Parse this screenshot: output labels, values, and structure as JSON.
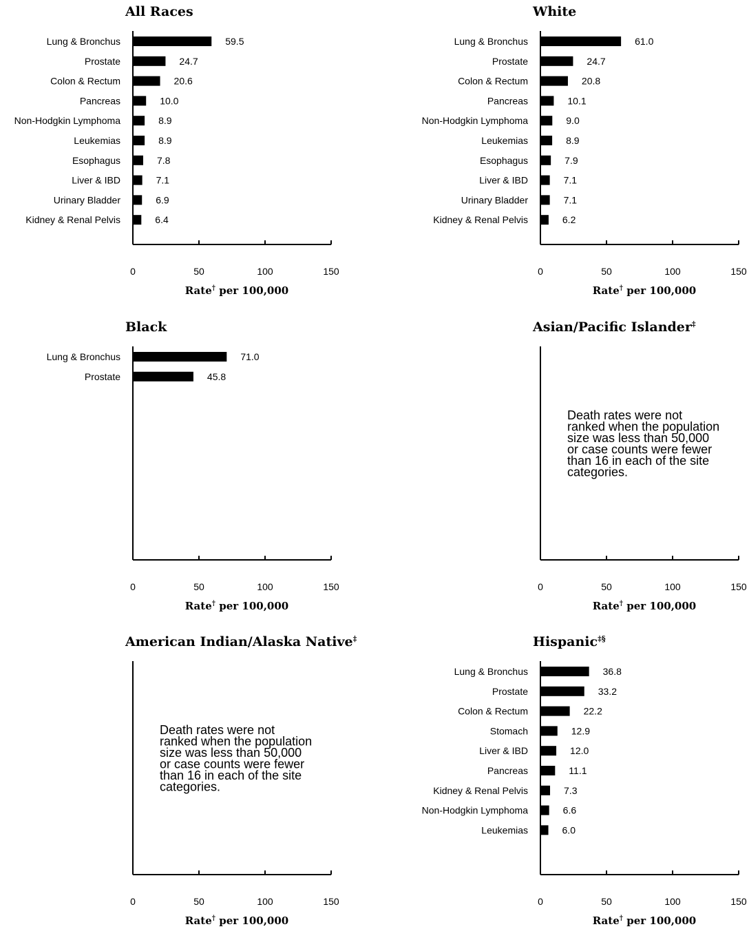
{
  "chart_data": [
    {
      "type": "bar",
      "title": "All Races",
      "title_mark": "",
      "xlabel_prefix": "Rate",
      "xlabel_mark": "†",
      "xlabel_suffix": " per 100,000",
      "xlim": [
        0,
        150
      ],
      "xticks": [
        0,
        50,
        100,
        150
      ],
      "categories": [
        "Lung & Bronchus",
        "Prostate",
        "Colon & Rectum",
        "Pancreas",
        "Non-Hodgkin Lymphoma",
        "Leukemias",
        "Esophagus",
        "Liver & IBD",
        "Urinary Bladder",
        "Kidney & Renal Pelvis"
      ],
      "values": [
        59.5,
        24.7,
        20.6,
        10.0,
        8.9,
        8.9,
        7.8,
        7.1,
        6.9,
        6.4
      ],
      "value_labels": [
        "59.5",
        "24.7",
        "20.6",
        "10.0",
        "8.9",
        "8.9",
        "7.8",
        "7.1",
        "6.9",
        "6.4"
      ],
      "note_lines": []
    },
    {
      "type": "bar",
      "title": "White",
      "title_mark": "",
      "xlabel_prefix": "Rate",
      "xlabel_mark": "†",
      "xlabel_suffix": " per 100,000",
      "xlim": [
        0,
        150
      ],
      "xticks": [
        0,
        50,
        100,
        150
      ],
      "categories": [
        "Lung & Bronchus",
        "Prostate",
        "Colon & Rectum",
        "Pancreas",
        "Non-Hodgkin Lymphoma",
        "Leukemias",
        "Esophagus",
        "Liver & IBD",
        "Urinary Bladder",
        "Kidney & Renal Pelvis"
      ],
      "values": [
        61.0,
        24.7,
        20.8,
        10.1,
        9.0,
        8.9,
        7.9,
        7.1,
        7.1,
        6.2
      ],
      "value_labels": [
        "61.0",
        "24.7",
        "20.8",
        "10.1",
        "9.0",
        "8.9",
        "7.9",
        "7.1",
        "7.1",
        "6.2"
      ],
      "note_lines": []
    },
    {
      "type": "bar",
      "title": "Black",
      "title_mark": "",
      "xlabel_prefix": "Rate",
      "xlabel_mark": "†",
      "xlabel_suffix": " per 100,000",
      "xlim": [
        0,
        150
      ],
      "xticks": [
        0,
        50,
        100,
        150
      ],
      "categories": [
        "Lung & Bronchus",
        "Prostate"
      ],
      "values": [
        71.0,
        45.8
      ],
      "value_labels": [
        "71.0",
        "45.8"
      ],
      "note_lines": []
    },
    {
      "type": "bar",
      "title": "Asian/Pacific Islander",
      "title_mark": "‡",
      "xlabel_prefix": "Rate",
      "xlabel_mark": "†",
      "xlabel_suffix": " per 100,000",
      "xlim": [
        0,
        150
      ],
      "xticks": [
        0,
        50,
        100,
        150
      ],
      "categories": [],
      "values": [],
      "value_labels": [],
      "note_lines": [
        "Death rates were not",
        "ranked when the population",
        "size was less than 50,000",
        "or case counts were fewer",
        "than 16 in each of the site",
        "categories."
      ]
    },
    {
      "type": "bar",
      "title": "American Indian/Alaska Native",
      "title_mark": "‡",
      "xlabel_prefix": "Rate",
      "xlabel_mark": "†",
      "xlabel_suffix": " per 100,000",
      "xlim": [
        0,
        150
      ],
      "xticks": [
        0,
        50,
        100,
        150
      ],
      "categories": [],
      "values": [],
      "value_labels": [],
      "note_lines": [
        "Death rates were not",
        "ranked when the population",
        "size was less than 50,000",
        "or case counts were fewer",
        "than 16 in each of the site",
        "categories."
      ]
    },
    {
      "type": "bar",
      "title": "Hispanic",
      "title_mark": "‡§",
      "xlabel_prefix": "Rate",
      "xlabel_mark": "†",
      "xlabel_suffix": " per 100,000",
      "xlim": [
        0,
        150
      ],
      "xticks": [
        0,
        50,
        100,
        150
      ],
      "categories": [
        "Lung & Bronchus",
        "Prostate",
        "Colon & Rectum",
        "Stomach",
        "Liver & IBD",
        "Pancreas",
        "Kidney & Renal Pelvis",
        "Non-Hodgkin Lymphoma",
        "Leukemias"
      ],
      "values": [
        36.8,
        33.2,
        22.2,
        12.9,
        12.0,
        11.1,
        7.3,
        6.6,
        6.0
      ],
      "value_labels": [
        "36.8",
        "33.2",
        "22.2",
        "12.9",
        "12.0",
        "11.1",
        "7.3",
        "6.6",
        "6.0"
      ],
      "note_lines": []
    }
  ]
}
